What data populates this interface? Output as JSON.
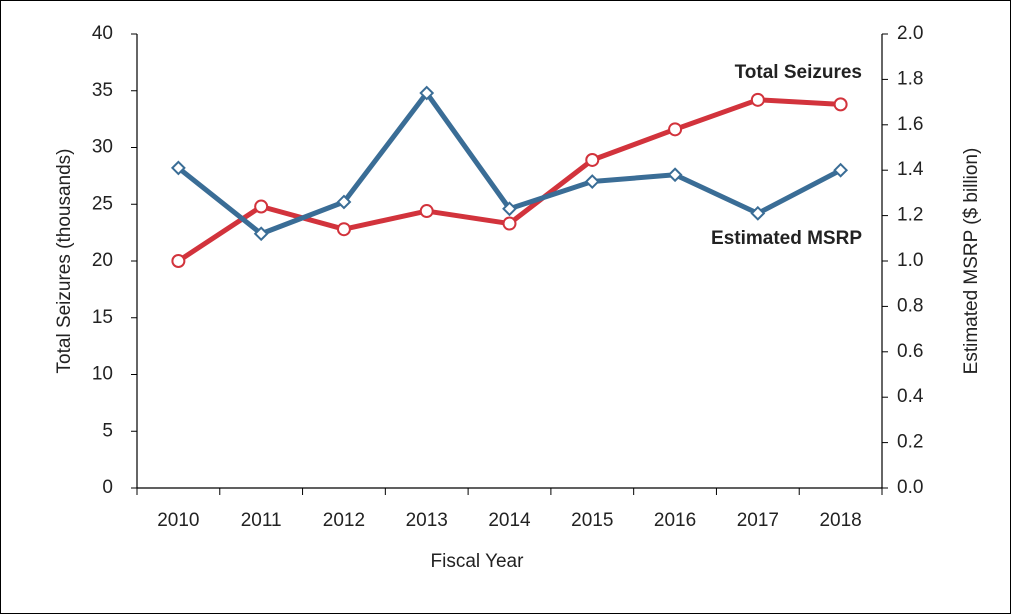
{
  "chart_data": {
    "type": "line",
    "xlabel": "Fiscal Year",
    "ylabel": "Total Seizures (thousands)",
    "y2label": "Estimated MSRP ($ billion)",
    "categories": [
      "2010",
      "2011",
      "2012",
      "2013",
      "2014",
      "2015",
      "2016",
      "2017",
      "2018"
    ],
    "series": [
      {
        "name": "Total Seizures",
        "color": "#d2333c",
        "marker": "circle",
        "axis": "y",
        "values": [
          20.0,
          24.8,
          22.8,
          24.4,
          23.3,
          28.9,
          31.6,
          34.2,
          33.8
        ]
      },
      {
        "name": "Estimated MSRP",
        "color": "#3a6d96",
        "marker": "diamond",
        "axis": "y2",
        "values": [
          1.41,
          1.12,
          1.26,
          1.74,
          1.23,
          1.35,
          1.38,
          1.21,
          1.4
        ]
      }
    ],
    "ylim": [
      0,
      40
    ],
    "yticks": [
      0,
      5,
      10,
      15,
      20,
      25,
      30,
      35,
      40
    ],
    "y2lim": [
      0,
      2.0
    ],
    "y2ticks": [
      {
        "value": 0,
        "label": "0.0"
      },
      0.2,
      0.4,
      0.6,
      0.8,
      {
        "value": 1,
        "label": "1.0"
      },
      1.2,
      1.4,
      1.6,
      1.8,
      {
        "value": 2,
        "label": "2.0"
      }
    ],
    "grid": false,
    "legend": "annotations"
  }
}
